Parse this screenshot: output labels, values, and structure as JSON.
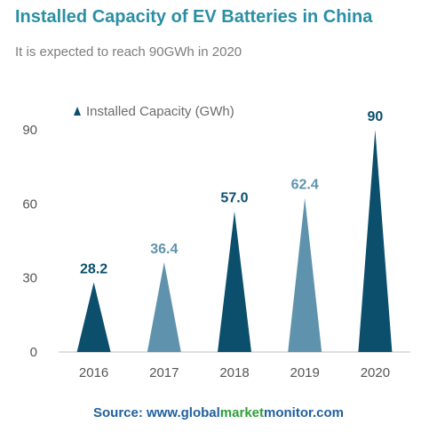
{
  "colors": {
    "dark": "#0b4f6c",
    "light": "#5f93ad",
    "title": "#2a8fa4",
    "axis": "#bfbfbf"
  },
  "source": {
    "prefix": "Source: www.",
    "part1": "global",
    "part2": "market",
    "part3": "monitor",
    "suffix": ".com"
  },
  "chart_data": {
    "type": "bar",
    "title": "Installed Capacity of EV Batteries in China",
    "subtitle": "It is expected to reach 90GWh in 2020",
    "categories": [
      "2016",
      "2017",
      "2018",
      "2019",
      "2020"
    ],
    "series": [
      {
        "name": "Installed Capacity (GWh)",
        "values": [
          28.2,
          36.4,
          57.0,
          62.4,
          90
        ],
        "value_labels": [
          "28.2",
          "36.4",
          "57.0",
          "62.4",
          "90"
        ]
      }
    ],
    "bar_colors": [
      "#0b4f6c",
      "#5f93ad",
      "#0b4f6c",
      "#5f93ad",
      "#0b4f6c"
    ],
    "yticks": [
      0,
      30,
      60,
      90
    ],
    "ylim": [
      0,
      90
    ],
    "grid": false,
    "legend": "top-left",
    "mark_shape": "triangle"
  }
}
